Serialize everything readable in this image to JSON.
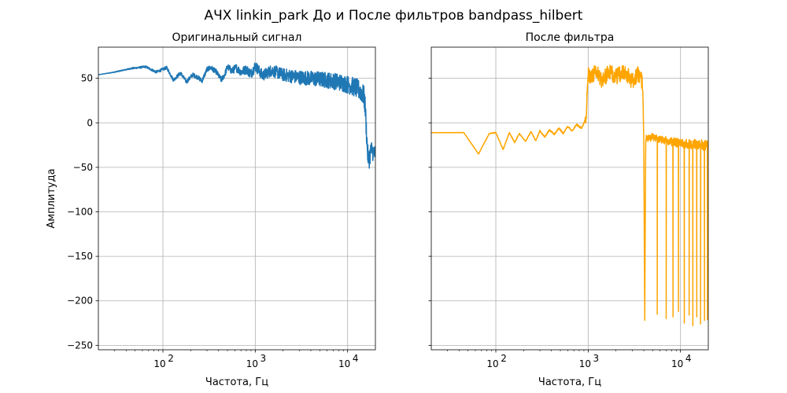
{
  "figure": {
    "suptitle": "АЧХ linkin_park До и После фильтров bandpass_hilbert"
  },
  "chart_data": [
    {
      "type": "line",
      "title": "Оригинальный сигнал",
      "xlabel": "Частота, Гц",
      "ylabel": "Амплитуда",
      "xscale": "log",
      "xlim": [
        20,
        20000
      ],
      "ylim": [
        -255,
        85
      ],
      "xticks": [
        {
          "value": 100,
          "base": "10",
          "exp": "2"
        },
        {
          "value": 1000,
          "base": "10",
          "exp": "3"
        },
        {
          "value": 10000,
          "base": "10",
          "exp": "4"
        }
      ],
      "yticks": [
        50,
        0,
        -50,
        -100,
        -150,
        -200,
        -250
      ],
      "grid": true,
      "color": "#1f77b4",
      "series": [
        {
          "anchors": [
            [
              20,
              54
            ],
            [
              30,
              57
            ],
            [
              45,
              61
            ],
            [
              65,
              63
            ],
            [
              85,
              57
            ],
            [
              110,
              62
            ],
            [
              130,
              48
            ],
            [
              155,
              56
            ],
            [
              180,
              46
            ],
            [
              210,
              54
            ],
            [
              240,
              51
            ],
            [
              265,
              47
            ],
            [
              300,
              60
            ],
            [
              330,
              62
            ],
            [
              380,
              57
            ],
            [
              430,
              48
            ],
            [
              470,
              55
            ],
            [
              500,
              63
            ],
            [
              560,
              58
            ],
            [
              620,
              62
            ],
            [
              700,
              57
            ],
            [
              800,
              60
            ],
            [
              900,
              55
            ],
            [
              1000,
              64
            ],
            [
              1200,
              53
            ],
            [
              1500,
              59
            ],
            [
              2000,
              54
            ],
            [
              3000,
              51
            ],
            [
              4000,
              50
            ],
            [
              6000,
              48
            ],
            [
              8000,
              46
            ],
            [
              10000,
              43
            ],
            [
              12000,
              40
            ],
            [
              14000,
              35
            ],
            [
              15000,
              30
            ],
            [
              15500,
              18
            ],
            [
              16000,
              -10
            ],
            [
              16500,
              -35
            ],
            [
              17000,
              -42
            ],
            [
              18000,
              -30
            ],
            [
              20000,
              -36
            ]
          ],
          "noise_amplitude": [
            [
              20,
              0
            ],
            [
              400,
              3
            ],
            [
              1000,
              6
            ],
            [
              3000,
              8
            ],
            [
              10000,
              10
            ],
            [
              15000,
              12
            ],
            [
              20000,
              10
            ]
          ]
        }
      ]
    },
    {
      "type": "line",
      "title": "После фильтра",
      "xlabel": "Частота, Гц",
      "ylabel": "",
      "xscale": "log",
      "xlim": [
        20,
        20000
      ],
      "ylim": [
        -255,
        85
      ],
      "xticks": [
        {
          "value": 100,
          "base": "10",
          "exp": "2"
        },
        {
          "value": 1000,
          "base": "10",
          "exp": "3"
        },
        {
          "value": 10000,
          "base": "10",
          "exp": "4"
        }
      ],
      "yticks": [
        50,
        0,
        -50,
        -100,
        -150,
        -200,
        -250
      ],
      "grid": true,
      "color": "#ffa500",
      "series": [
        {
          "anchors": [
            [
              20,
              -11
            ],
            [
              45,
              -11
            ],
            [
              65,
              -35
            ],
            [
              85,
              -12
            ],
            [
              100,
              -11
            ],
            [
              120,
              -30
            ],
            [
              140,
              -11
            ],
            [
              160,
              -22
            ],
            [
              180,
              -12
            ],
            [
              210,
              -21
            ],
            [
              240,
              -10
            ],
            [
              270,
              -20
            ],
            [
              300,
              -9
            ],
            [
              340,
              -16
            ],
            [
              380,
              -8
            ],
            [
              430,
              -13
            ],
            [
              480,
              -6
            ],
            [
              540,
              -12
            ],
            [
              600,
              -4
            ],
            [
              670,
              -9
            ],
            [
              750,
              -2
            ],
            [
              850,
              -6
            ],
            [
              950,
              5
            ],
            [
              1000,
              56
            ],
            [
              1100,
              50
            ],
            [
              1200,
              60
            ],
            [
              1400,
              48
            ],
            [
              1700,
              57
            ],
            [
              2000,
              52
            ],
            [
              2500,
              57
            ],
            [
              3000,
              47
            ],
            [
              3500,
              55
            ],
            [
              3900,
              45
            ],
            [
              4000,
              -15
            ],
            [
              4100,
              -222
            ],
            [
              4200,
              -18
            ],
            [
              5000,
              -16
            ],
            [
              6000,
              -18
            ],
            [
              8000,
              -21
            ],
            [
              10000,
              -23
            ],
            [
              15000,
              -24
            ],
            [
              20000,
              -26
            ]
          ],
          "noise_amplitude": [
            [
              20,
              0
            ],
            [
              900,
              1
            ],
            [
              1000,
              9
            ],
            [
              3900,
              9
            ],
            [
              4000,
              4
            ],
            [
              20000,
              6
            ]
          ],
          "dips": [
            [
              4100,
              -222
            ],
            [
              5600,
              -215
            ],
            [
              7000,
              -220
            ],
            [
              8300,
              -218
            ],
            [
              9500,
              -212
            ],
            [
              11000,
              -225
            ],
            [
              12400,
              -216
            ],
            [
              13600,
              -228
            ],
            [
              15000,
              -218
            ],
            [
              16500,
              -226
            ],
            [
              18200,
              -222
            ],
            [
              19600,
              -221
            ]
          ]
        }
      ]
    }
  ]
}
